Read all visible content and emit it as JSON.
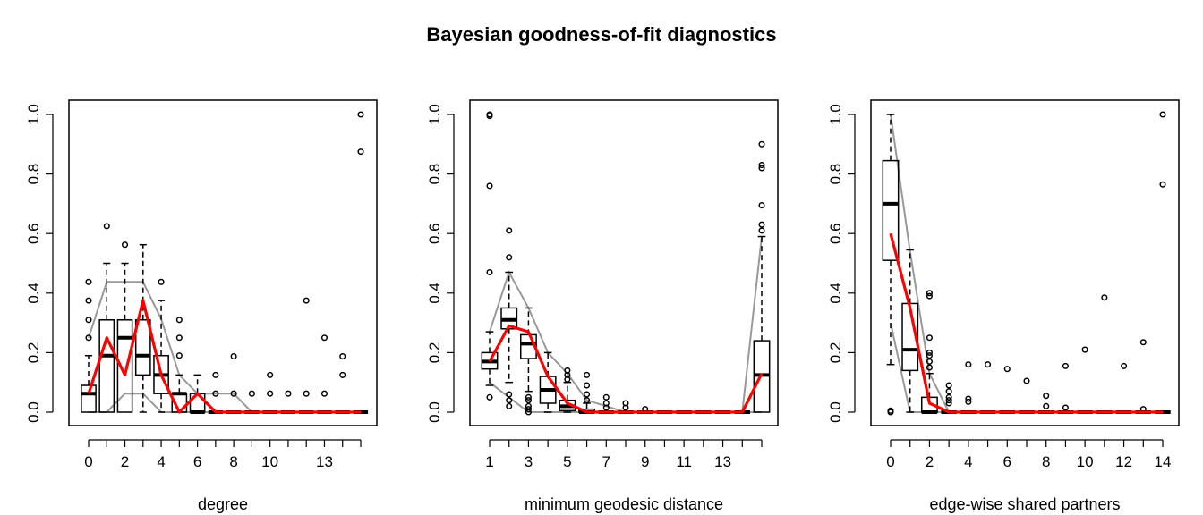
{
  "title": "Bayesian goodness-of-fit diagnostics",
  "colors": {
    "observed": "#ff0000",
    "envelope": "#999999",
    "box": "#000000"
  },
  "chart_data": [
    {
      "type": "boxplot",
      "xlabel": "degree",
      "ylim": [
        0,
        1
      ],
      "yticks": [
        "0.0",
        "0.2",
        "0.4",
        "0.6",
        "0.8",
        "1.0"
      ],
      "xticks": [
        "0",
        "2",
        "4",
        "6",
        "8",
        "10",
        "13"
      ],
      "categories": [
        "0",
        "1",
        "2",
        "3",
        "4",
        "5",
        "6",
        "7",
        "8",
        "9",
        "10",
        "11",
        "12",
        "13",
        "14",
        "15"
      ],
      "boxes": [
        {
          "q1": 0.0,
          "med": 0.0625,
          "q3": 0.09,
          "lo": 0.0,
          "hi": 0.19,
          "out": [
            0.25,
            0.31,
            0.375,
            0.4375
          ]
        },
        {
          "q1": 0.0,
          "med": 0.19,
          "q3": 0.31,
          "lo": 0.0,
          "hi": 0.5,
          "out": [
            0.625
          ]
        },
        {
          "q1": 0.0,
          "med": 0.25,
          "q3": 0.31,
          "lo": 0.0,
          "hi": 0.5,
          "out": [
            0.5625
          ]
        },
        {
          "q1": 0.125,
          "med": 0.19,
          "q3": 0.31,
          "lo": 0.0,
          "hi": 0.5625,
          "out": []
        },
        {
          "q1": 0.0625,
          "med": 0.125,
          "q3": 0.19,
          "lo": 0.0,
          "hi": 0.375,
          "out": [
            0.4375
          ]
        },
        {
          "q1": 0.0,
          "med": 0.0625,
          "q3": 0.0625,
          "lo": 0.0,
          "hi": 0.125,
          "out": [
            0.19,
            0.25,
            0.31
          ]
        },
        {
          "q1": 0.0,
          "med": 0.0,
          "q3": 0.0625,
          "lo": 0.0,
          "hi": 0.125,
          "out": []
        },
        {
          "q1": 0.0,
          "med": 0.0,
          "q3": 0.0,
          "lo": 0.0,
          "hi": 0.0,
          "out": [
            0.0625,
            0.125
          ]
        },
        {
          "q1": 0.0,
          "med": 0.0,
          "q3": 0.0,
          "lo": 0.0,
          "hi": 0.0,
          "out": [
            0.0625,
            0.1875
          ]
        },
        {
          "q1": 0.0,
          "med": 0.0,
          "q3": 0.0,
          "lo": 0.0,
          "hi": 0.0,
          "out": [
            0.0625
          ]
        },
        {
          "q1": 0.0,
          "med": 0.0,
          "q3": 0.0,
          "lo": 0.0,
          "hi": 0.0,
          "out": [
            0.0625,
            0.125
          ]
        },
        {
          "q1": 0.0,
          "med": 0.0,
          "q3": 0.0,
          "lo": 0.0,
          "hi": 0.0,
          "out": [
            0.0625
          ]
        },
        {
          "q1": 0.0,
          "med": 0.0,
          "q3": 0.0,
          "lo": 0.0,
          "hi": 0.0,
          "out": [
            0.0625,
            0.375
          ]
        },
        {
          "q1": 0.0,
          "med": 0.0,
          "q3": 0.0,
          "lo": 0.0,
          "hi": 0.0,
          "out": [
            0.0625,
            0.25
          ]
        },
        {
          "q1": 0.0,
          "med": 0.0,
          "q3": 0.0,
          "lo": 0.0,
          "hi": 0.0,
          "out": [
            0.125,
            0.1875
          ]
        },
        {
          "q1": 0.0,
          "med": 0.0,
          "q3": 0.0,
          "lo": 0.0,
          "hi": 0.0,
          "out": [
            0.875,
            1.0
          ]
        }
      ],
      "observed": [
        0.0625,
        0.25,
        0.125,
        0.375,
        0.125,
        0.0,
        0.0625,
        0.0,
        0.0,
        0.0,
        0.0,
        0.0,
        0.0,
        0.0,
        0.0,
        0.0
      ],
      "envelope_high": [
        0.25,
        0.4375,
        0.4375,
        0.4375,
        0.3125,
        0.125,
        0.0625,
        0.0625,
        0.0625,
        0.0,
        0.0,
        0.0,
        0.0,
        0.0,
        0.0,
        0.0
      ],
      "envelope_low": [
        0.0,
        0.0,
        0.0625,
        0.0625,
        0.0,
        0.0,
        0.0,
        0.0,
        0.0,
        0.0,
        0.0,
        0.0,
        0.0,
        0.0,
        0.0,
        0.0
      ]
    },
    {
      "type": "boxplot",
      "xlabel": "minimum geodesic distance",
      "ylim": [
        0,
        1
      ],
      "yticks": [
        "0.0",
        "0.2",
        "0.4",
        "0.6",
        "0.8",
        "1.0"
      ],
      "xticks": [
        "1",
        "3",
        "5",
        "7",
        "9",
        "11",
        "13"
      ],
      "categories": [
        "1",
        "2",
        "3",
        "4",
        "5",
        "6",
        "7",
        "8",
        "9",
        "10",
        "11",
        "12",
        "13",
        "14",
        "15"
      ],
      "boxes": [
        {
          "q1": 0.145,
          "med": 0.17,
          "q3": 0.2,
          "lo": 0.09,
          "hi": 0.27,
          "out": [
            0.05,
            0.47,
            0.76,
            0.995,
            1.0
          ]
        },
        {
          "q1": 0.28,
          "med": 0.31,
          "q3": 0.35,
          "lo": 0.1,
          "hi": 0.47,
          "out": [
            0.02,
            0.04,
            0.06,
            0.52,
            0.61
          ]
        },
        {
          "q1": 0.18,
          "med": 0.23,
          "q3": 0.26,
          "lo": 0.07,
          "hi": 0.35,
          "out": [
            0.0,
            0.01,
            0.02,
            0.04,
            0.05
          ]
        },
        {
          "q1": 0.03,
          "med": 0.075,
          "q3": 0.12,
          "lo": 0.0,
          "hi": 0.2,
          "out": []
        },
        {
          "q1": 0.005,
          "med": 0.02,
          "q3": 0.04,
          "lo": 0.0,
          "hi": 0.1,
          "out": [
            0.11,
            0.125,
            0.14
          ]
        },
        {
          "q1": 0.0,
          "med": 0.0,
          "q3": 0.01,
          "lo": 0.0,
          "hi": 0.03,
          "out": [
            0.04,
            0.06,
            0.09,
            0.125
          ]
        },
        {
          "q1": 0.0,
          "med": 0.0,
          "q3": 0.0,
          "lo": 0.0,
          "hi": 0.0,
          "out": [
            0.015,
            0.03,
            0.05
          ]
        },
        {
          "q1": 0.0,
          "med": 0.0,
          "q3": 0.0,
          "lo": 0.0,
          "hi": 0.0,
          "out": [
            0.015,
            0.03
          ]
        },
        {
          "q1": 0.0,
          "med": 0.0,
          "q3": 0.0,
          "lo": 0.0,
          "hi": 0.0,
          "out": [
            0.01
          ]
        },
        {
          "q1": 0.0,
          "med": 0.0,
          "q3": 0.0,
          "lo": 0.0,
          "hi": 0.0,
          "out": []
        },
        {
          "q1": 0.0,
          "med": 0.0,
          "q3": 0.0,
          "lo": 0.0,
          "hi": 0.0,
          "out": []
        },
        {
          "q1": 0.0,
          "med": 0.0,
          "q3": 0.0,
          "lo": 0.0,
          "hi": 0.0,
          "out": []
        },
        {
          "q1": 0.0,
          "med": 0.0,
          "q3": 0.0,
          "lo": 0.0,
          "hi": 0.0,
          "out": []
        },
        {
          "q1": 0.0,
          "med": 0.0,
          "q3": 0.0,
          "lo": 0.0,
          "hi": 0.0,
          "out": []
        },
        {
          "q1": 0.0,
          "med": 0.125,
          "q3": 0.24,
          "lo": 0.0,
          "hi": 0.59,
          "out": [
            0.61,
            0.63,
            0.695,
            0.82,
            0.83,
            0.9
          ]
        }
      ],
      "observed": [
        0.17,
        0.29,
        0.27,
        0.12,
        0.03,
        0.0,
        0.0,
        0.0,
        0.0,
        0.0,
        0.0,
        0.0,
        0.0,
        0.0,
        0.13
      ],
      "envelope_high": [
        0.27,
        0.47,
        0.35,
        0.2,
        0.13,
        0.04,
        0.02,
        0.0,
        0.0,
        0.0,
        0.0,
        0.0,
        0.0,
        0.0,
        0.59
      ],
      "envelope_low": [
        0.1,
        0.05,
        0.0,
        0.0,
        0.0,
        0.0,
        0.0,
        0.0,
        0.0,
        0.0,
        0.0,
        0.0,
        0.0,
        0.0,
        0.0
      ]
    },
    {
      "type": "boxplot",
      "xlabel": "edge-wise shared partners",
      "ylim": [
        0,
        1
      ],
      "yticks": [
        "0.0",
        "0.2",
        "0.4",
        "0.6",
        "0.8",
        "1.0"
      ],
      "xticks": [
        "0",
        "2",
        "4",
        "6",
        "8",
        "10",
        "12",
        "14"
      ],
      "categories": [
        "0",
        "1",
        "2",
        "3",
        "4",
        "5",
        "6",
        "7",
        "8",
        "9",
        "10",
        "11",
        "12",
        "13",
        "14"
      ],
      "boxes": [
        {
          "q1": 0.51,
          "med": 0.7,
          "q3": 0.845,
          "lo": 0.16,
          "hi": 1.0,
          "out": [
            0.0,
            0.005
          ]
        },
        {
          "q1": 0.14,
          "med": 0.21,
          "q3": 0.365,
          "lo": 0.0,
          "hi": 0.545,
          "out": []
        },
        {
          "q1": 0.0,
          "med": 0.0,
          "q3": 0.05,
          "lo": 0.0,
          "hi": 0.13,
          "out": [
            0.15,
            0.17,
            0.19,
            0.2,
            0.25,
            0.39,
            0.4
          ]
        },
        {
          "q1": 0.0,
          "med": 0.0,
          "q3": 0.0,
          "lo": 0.0,
          "hi": 0.0,
          "out": [
            0.03,
            0.04,
            0.05,
            0.07,
            0.09
          ]
        },
        {
          "q1": 0.0,
          "med": 0.0,
          "q3": 0.0,
          "lo": 0.0,
          "hi": 0.0,
          "out": [
            0.035,
            0.045,
            0.16
          ]
        },
        {
          "q1": 0.0,
          "med": 0.0,
          "q3": 0.0,
          "lo": 0.0,
          "hi": 0.0,
          "out": [
            0.16
          ]
        },
        {
          "q1": 0.0,
          "med": 0.0,
          "q3": 0.0,
          "lo": 0.0,
          "hi": 0.0,
          "out": [
            0.145
          ]
        },
        {
          "q1": 0.0,
          "med": 0.0,
          "q3": 0.0,
          "lo": 0.0,
          "hi": 0.0,
          "out": [
            0.105
          ]
        },
        {
          "q1": 0.0,
          "med": 0.0,
          "q3": 0.0,
          "lo": 0.0,
          "hi": 0.0,
          "out": [
            0.02,
            0.055
          ]
        },
        {
          "q1": 0.0,
          "med": 0.0,
          "q3": 0.0,
          "lo": 0.0,
          "hi": 0.0,
          "out": [
            0.015,
            0.155
          ]
        },
        {
          "q1": 0.0,
          "med": 0.0,
          "q3": 0.0,
          "lo": 0.0,
          "hi": 0.0,
          "out": [
            0.21
          ]
        },
        {
          "q1": 0.0,
          "med": 0.0,
          "q3": 0.0,
          "lo": 0.0,
          "hi": 0.0,
          "out": [
            0.385
          ]
        },
        {
          "q1": 0.0,
          "med": 0.0,
          "q3": 0.0,
          "lo": 0.0,
          "hi": 0.0,
          "out": [
            0.155
          ]
        },
        {
          "q1": 0.0,
          "med": 0.0,
          "q3": 0.0,
          "lo": 0.0,
          "hi": 0.0,
          "out": [
            0.01,
            0.235
          ]
        },
        {
          "q1": 0.0,
          "med": 0.0,
          "q3": 0.0,
          "lo": 0.0,
          "hi": 0.0,
          "out": [
            0.765,
            1.0
          ]
        }
      ],
      "observed": [
        0.6,
        0.35,
        0.03,
        0.0,
        0.0,
        0.0,
        0.0,
        0.0,
        0.0,
        0.0,
        0.0,
        0.0,
        0.0,
        0.0,
        0.0
      ],
      "envelope_high": [
        1.0,
        0.54,
        0.13,
        0.0,
        0.0,
        0.0,
        0.0,
        0.0,
        0.0,
        0.0,
        0.0,
        0.0,
        0.0,
        0.0,
        0.0
      ],
      "envelope_low": [
        0.3,
        0.0,
        0.0,
        0.0,
        0.0,
        0.0,
        0.0,
        0.0,
        0.0,
        0.0,
        0.0,
        0.0,
        0.0,
        0.0,
        0.0
      ]
    }
  ]
}
